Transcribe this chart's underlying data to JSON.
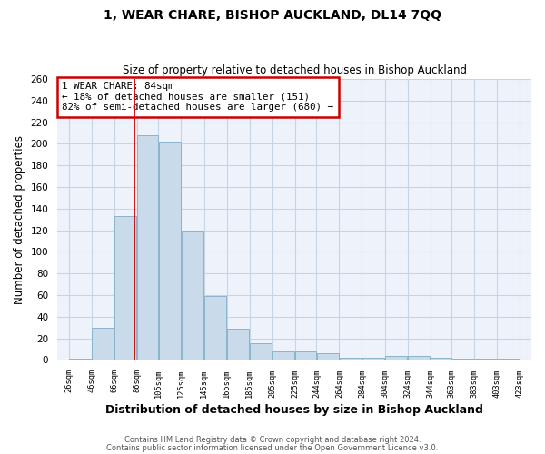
{
  "title": "1, WEAR CHARE, BISHOP AUCKLAND, DL14 7QQ",
  "subtitle": "Size of property relative to detached houses in Bishop Auckland",
  "xlabel": "Distribution of detached houses by size in Bishop Auckland",
  "ylabel": "Number of detached properties",
  "bar_left_edges": [
    26,
    46,
    66,
    86,
    105,
    125,
    145,
    165,
    185,
    205,
    225,
    244,
    264,
    284,
    304,
    324,
    344,
    363,
    383,
    403
  ],
  "bar_widths": [
    20,
    20,
    20,
    19,
    20,
    20,
    20,
    20,
    20,
    20,
    19,
    20,
    20,
    20,
    20,
    20,
    19,
    20,
    20,
    20
  ],
  "bar_heights": [
    1,
    30,
    133,
    208,
    202,
    120,
    59,
    29,
    15,
    8,
    8,
    6,
    2,
    2,
    4,
    4,
    2,
    1,
    1,
    1
  ],
  "tick_labels": [
    "26sqm",
    "46sqm",
    "66sqm",
    "86sqm",
    "105sqm",
    "125sqm",
    "145sqm",
    "165sqm",
    "185sqm",
    "205sqm",
    "225sqm",
    "244sqm",
    "264sqm",
    "284sqm",
    "304sqm",
    "324sqm",
    "344sqm",
    "363sqm",
    "383sqm",
    "403sqm",
    "423sqm"
  ],
  "tick_positions": [
    26,
    46,
    66,
    86,
    105,
    125,
    145,
    165,
    185,
    205,
    225,
    244,
    264,
    284,
    304,
    324,
    344,
    363,
    383,
    403,
    423
  ],
  "xlim_left": 16,
  "xlim_right": 433,
  "ylim": [
    0,
    260
  ],
  "yticks": [
    0,
    20,
    40,
    60,
    80,
    100,
    120,
    140,
    160,
    180,
    200,
    220,
    240,
    260
  ],
  "bar_facecolor": "#c9daea",
  "bar_edgecolor": "#8ab4cc",
  "grid_color": "#c5d5e8",
  "background_color": "#eef2fb",
  "vline_x": 84,
  "vline_color": "#cc0000",
  "annotation_title": "1 WEAR CHARE: 84sqm",
  "annotation_line1": "← 18% of detached houses are smaller (151)",
  "annotation_line2": "82% of semi-detached houses are larger (680) →",
  "annotation_box_edgecolor": "#cc0000",
  "footer_line1": "Contains HM Land Registry data © Crown copyright and database right 2024.",
  "footer_line2": "Contains public sector information licensed under the Open Government Licence v3.0."
}
